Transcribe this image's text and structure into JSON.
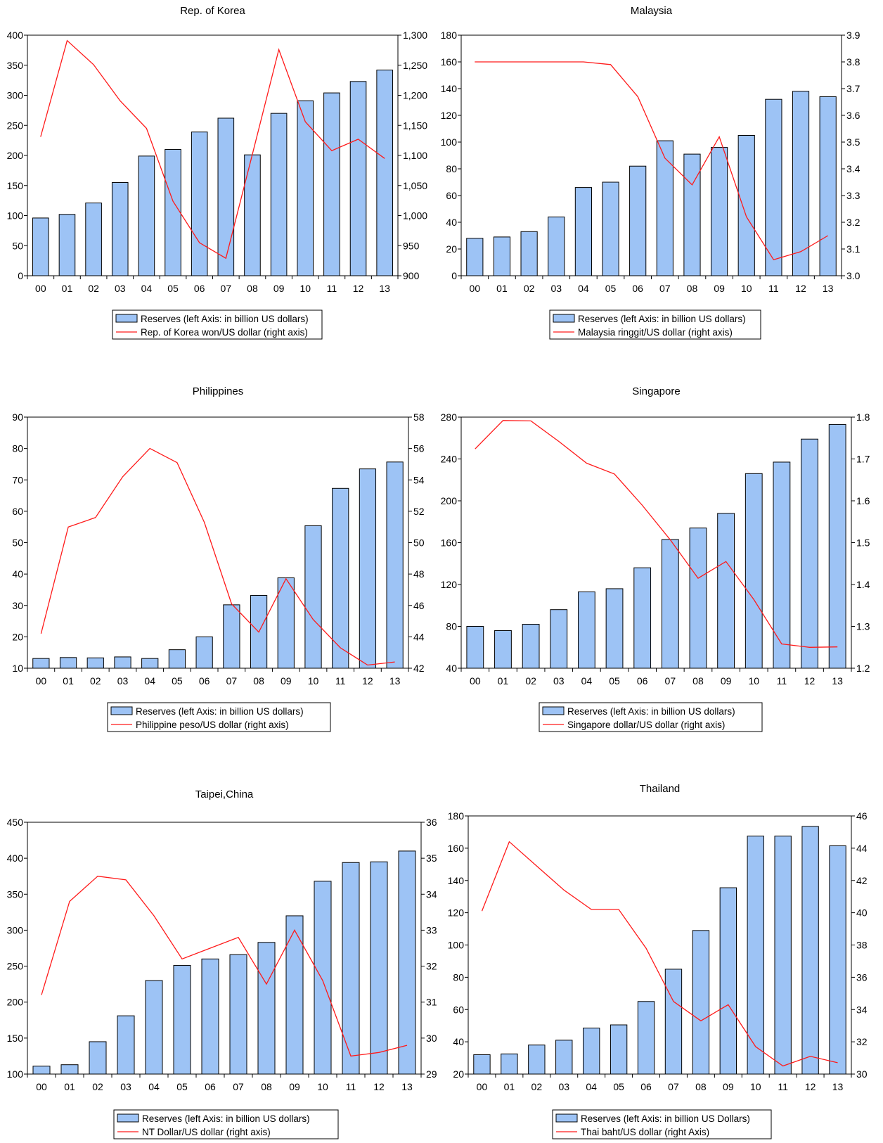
{
  "style": {
    "bar_fill": "#9dc3f5",
    "bar_stroke": "#000000",
    "line_color": "#ff1a1a"
  },
  "chart_data": [
    {
      "type": "bar",
      "title": "Rep. of Korea",
      "categories": [
        "00",
        "01",
        "02",
        "03",
        "04",
        "05",
        "06",
        "07",
        "08",
        "09",
        "10",
        "11",
        "12",
        "13"
      ],
      "y_left": {
        "min": 0,
        "max": 400,
        "ticks": [
          0,
          50,
          100,
          150,
          200,
          250,
          300,
          350,
          400
        ],
        "tick_labels": [
          "0",
          "50",
          "100",
          "150",
          "200",
          "250",
          "300",
          "350",
          "400"
        ]
      },
      "y_right": {
        "min": 900,
        "max": 1300,
        "ticks": [
          900,
          950,
          1000,
          1050,
          1100,
          1150,
          1200,
          1250,
          1300
        ],
        "tick_labels": [
          "900",
          "950",
          "1,000",
          "1,050",
          "1,100",
          "1,150",
          "1,200",
          "1,250",
          "1,300"
        ]
      },
      "series": [
        {
          "name": "Reserves (left Axis: in billion US dollars)",
          "type": "bar",
          "axis": "left",
          "values": [
            96,
            102,
            121,
            155,
            199,
            210,
            239,
            262,
            201,
            270,
            291,
            304,
            323,
            342
          ]
        },
        {
          "name": "Rep. of Korea won/US dollar (right axis)",
          "type": "line",
          "axis": "right",
          "values": [
            1131,
            1291,
            1251,
            1191,
            1145,
            1024,
            955,
            929,
            1102,
            1276,
            1156,
            1108,
            1127,
            1095
          ]
        }
      ]
    },
    {
      "type": "bar",
      "title": "Malaysia",
      "categories": [
        "00",
        "01",
        "02",
        "03",
        "04",
        "05",
        "06",
        "07",
        "08",
        "09",
        "10",
        "11",
        "12",
        "13"
      ],
      "y_left": {
        "min": 0,
        "max": 180,
        "ticks": [
          0,
          20,
          40,
          60,
          80,
          100,
          120,
          140,
          160,
          180
        ],
        "tick_labels": [
          "0",
          "20",
          "40",
          "60",
          "80",
          "100",
          "120",
          "140",
          "160",
          "180"
        ]
      },
      "y_right": {
        "min": 3.0,
        "max": 3.9,
        "ticks": [
          3.0,
          3.1,
          3.2,
          3.3,
          3.4,
          3.5,
          3.6,
          3.7,
          3.8,
          3.9
        ],
        "tick_labels": [
          "3.0",
          "3.1",
          "3.2",
          "3.3",
          "3.4",
          "3.5",
          "3.6",
          "3.7",
          "3.8",
          "3.9"
        ]
      },
      "series": [
        {
          "name": "Reserves (left Axis: in billion US dollars)",
          "type": "bar",
          "axis": "left",
          "values": [
            28,
            29,
            33,
            44,
            66,
            70,
            82,
            101,
            91,
            96,
            105,
            132,
            138,
            134
          ]
        },
        {
          "name": "Malaysia ringgit/US dollar (right axis)",
          "type": "line",
          "axis": "right",
          "values": [
            3.8,
            3.8,
            3.8,
            3.8,
            3.8,
            3.79,
            3.67,
            3.44,
            3.34,
            3.52,
            3.22,
            3.06,
            3.09,
            3.15
          ]
        }
      ]
    },
    {
      "type": "bar",
      "title": "Philippines",
      "categories": [
        "00",
        "01",
        "02",
        "03",
        "04",
        "05",
        "06",
        "07",
        "08",
        "09",
        "10",
        "11",
        "12",
        "13"
      ],
      "y_left": {
        "min": 10,
        "max": 90,
        "ticks": [
          10,
          20,
          30,
          40,
          50,
          60,
          70,
          80,
          90
        ],
        "tick_labels": [
          "10",
          "20",
          "30",
          "40",
          "50",
          "60",
          "70",
          "80",
          "90"
        ]
      },
      "y_right": {
        "min": 42,
        "max": 58,
        "ticks": [
          42,
          44,
          46,
          48,
          50,
          52,
          54,
          56,
          58
        ],
        "tick_labels": [
          "42",
          "44",
          "46",
          "48",
          "50",
          "52",
          "54",
          "56",
          "58"
        ]
      },
      "series": [
        {
          "name": "Reserves (left Axis: in billion US dollars)",
          "type": "bar",
          "axis": "left",
          "values": [
            13.1,
            13.4,
            13.3,
            13.6,
            13.1,
            15.9,
            20.0,
            30.2,
            33.2,
            38.8,
            55.4,
            67.3,
            73.5,
            75.7
          ]
        },
        {
          "name": "Philippine peso/US dollar (right axis)",
          "type": "line",
          "axis": "right",
          "values": [
            44.2,
            51.0,
            51.6,
            54.2,
            56.0,
            55.1,
            51.3,
            46.1,
            44.3,
            47.7,
            45.1,
            43.3,
            42.2,
            42.4
          ]
        }
      ]
    },
    {
      "type": "bar",
      "title": "Singapore",
      "categories": [
        "00",
        "01",
        "02",
        "03",
        "04",
        "05",
        "06",
        "07",
        "08",
        "09",
        "10",
        "11",
        "12",
        "13"
      ],
      "y_left": {
        "min": 40,
        "max": 280,
        "ticks": [
          40,
          80,
          120,
          160,
          200,
          240,
          280
        ],
        "tick_labels": [
          "40",
          "80",
          "120",
          "160",
          "200",
          "240",
          "280"
        ]
      },
      "y_right": {
        "min": 1.2,
        "max": 1.8,
        "ticks": [
          1.2,
          1.3,
          1.4,
          1.5,
          1.6,
          1.7,
          1.8
        ],
        "tick_labels": [
          "1.2",
          "1.3",
          "1.4",
          "1.5",
          "1.6",
          "1.7",
          "1.8"
        ]
      },
      "series": [
        {
          "name": "Reserves (left Axis: in billion US dollars)",
          "type": "bar",
          "axis": "left",
          "values": [
            80,
            76,
            82,
            96,
            113,
            116,
            136,
            163,
            174,
            188,
            226,
            237,
            259,
            273
          ]
        },
        {
          "name": "Singapore dollar/US dollar (right axis)",
          "type": "line",
          "axis": "right",
          "values": [
            1.724,
            1.792,
            1.791,
            1.742,
            1.69,
            1.664,
            1.589,
            1.507,
            1.415,
            1.455,
            1.364,
            1.258,
            1.25,
            1.251
          ]
        }
      ]
    },
    {
      "type": "bar",
      "title": "Taipei,China",
      "categories": [
        "00",
        "01",
        "02",
        "03",
        "04",
        "05",
        "06",
        "07",
        "08",
        "09",
        "10",
        "11",
        "12",
        "13"
      ],
      "y_left": {
        "min": 100,
        "max": 450,
        "ticks": [
          100,
          150,
          200,
          250,
          300,
          350,
          400,
          450
        ],
        "tick_labels": [
          "100",
          "150",
          "200",
          "250",
          "300",
          "350",
          "400",
          "450"
        ]
      },
      "y_right": {
        "min": 29,
        "max": 36,
        "ticks": [
          29,
          30,
          31,
          32,
          33,
          34,
          35,
          36
        ],
        "tick_labels": [
          "29",
          "30",
          "31",
          "32",
          "33",
          "34",
          "35",
          "36"
        ]
      },
      "series": [
        {
          "name": "Reserves (left Axis: in billion US dollars)",
          "type": "bar",
          "axis": "left",
          "values": [
            111,
            113,
            145,
            181,
            230,
            251,
            260,
            266,
            283,
            320,
            368,
            394,
            395,
            410
          ]
        },
        {
          "name": "NT Dollar/US dollar (right axis)",
          "type": "line",
          "axis": "right",
          "values": [
            31.2,
            33.8,
            34.5,
            34.4,
            33.4,
            32.2,
            32.5,
            32.8,
            31.5,
            33.0,
            31.6,
            29.5,
            29.6,
            29.8
          ]
        }
      ]
    },
    {
      "type": "bar",
      "title": "Thailand",
      "categories": [
        "00",
        "01",
        "02",
        "03",
        "04",
        "05",
        "06",
        "07",
        "08",
        "09",
        "10",
        "11",
        "12",
        "13"
      ],
      "y_left": {
        "min": 20,
        "max": 180,
        "ticks": [
          20,
          40,
          60,
          80,
          100,
          120,
          140,
          160,
          180
        ],
        "tick_labels": [
          "20",
          "40",
          "60",
          "80",
          "100",
          "120",
          "140",
          "160",
          "180"
        ]
      },
      "y_right": {
        "min": 30,
        "max": 46,
        "ticks": [
          30,
          32,
          34,
          36,
          38,
          40,
          42,
          44,
          46
        ],
        "tick_labels": [
          "30",
          "32",
          "34",
          "36",
          "38",
          "40",
          "42",
          "44",
          "46"
        ]
      },
      "series": [
        {
          "name": "Reserves (left Axis: in billion US Dollars)",
          "type": "bar",
          "axis": "left",
          "values": [
            32,
            32.5,
            38,
            41,
            48.5,
            50.5,
            65,
            85,
            109,
            135.5,
            167.5,
            167.5,
            173.5,
            161.5
          ]
        },
        {
          "name": "Thai baht/US dollar (right Axis)",
          "type": "line",
          "axis": "right",
          "values": [
            40.1,
            44.4,
            42.9,
            41.4,
            40.2,
            40.2,
            37.8,
            34.5,
            33.3,
            34.3,
            31.7,
            30.5,
            31.1,
            30.7
          ]
        }
      ]
    }
  ]
}
